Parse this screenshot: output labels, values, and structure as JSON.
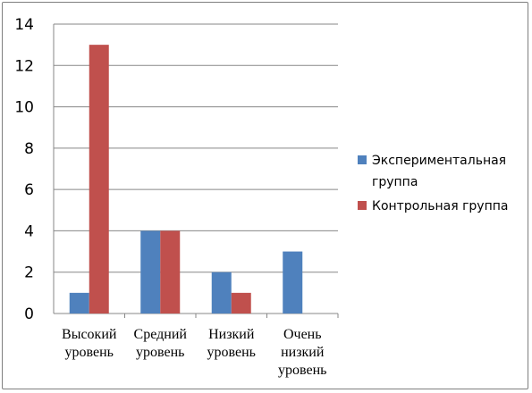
{
  "chart_data": {
    "type": "bar",
    "title": "",
    "xlabel": "",
    "ylabel": "",
    "ylim": [
      0,
      14
    ],
    "yticks": [
      0,
      2,
      4,
      6,
      8,
      10,
      12,
      14
    ],
    "grid": true,
    "legend_position": "right",
    "categories": [
      [
        "Высокий",
        "уровень"
      ],
      [
        "Средний",
        "уровень"
      ],
      [
        "Низкий",
        "уровень"
      ],
      [
        "Очень",
        "низкий",
        "уровень"
      ]
    ],
    "series": [
      {
        "name": [
          "Экспериментальная",
          "группа"
        ],
        "color": "#4f81bd",
        "values": [
          1,
          4,
          2,
          3
        ]
      },
      {
        "name": [
          "Контрольная группа"
        ],
        "color": "#c0504d",
        "values": [
          13,
          4,
          1,
          0
        ]
      }
    ]
  }
}
